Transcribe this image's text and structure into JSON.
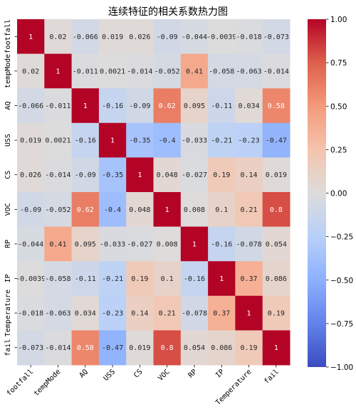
{
  "chart_data": {
    "type": "heatmap",
    "title": "连续特征的相关系数热力图",
    "labels": [
      "footfall",
      "tempMode",
      "AQ",
      "USS",
      "CS",
      "VOC",
      "RP",
      "IP",
      "Temperature",
      "fail"
    ],
    "values": [
      [
        1,
        0.02,
        -0.066,
        0.019,
        0.026,
        -0.09,
        -0.044,
        -0.0039,
        -0.018,
        -0.073
      ],
      [
        0.02,
        1,
        -0.011,
        0.0021,
        -0.014,
        -0.052,
        0.41,
        -0.058,
        -0.063,
        -0.014
      ],
      [
        -0.066,
        -0.011,
        1,
        -0.16,
        -0.09,
        0.62,
        0.095,
        -0.11,
        0.034,
        0.58
      ],
      [
        0.019,
        0.0021,
        -0.16,
        1,
        -0.35,
        -0.4,
        -0.033,
        -0.21,
        -0.23,
        -0.47
      ],
      [
        0.026,
        -0.014,
        -0.09,
        -0.35,
        1,
        0.048,
        -0.027,
        0.19,
        0.14,
        0.019
      ],
      [
        -0.09,
        -0.052,
        0.62,
        -0.4,
        0.048,
        1,
        0.008,
        0.1,
        0.21,
        0.8
      ],
      [
        -0.044,
        0.41,
        0.095,
        -0.033,
        -0.027,
        0.008,
        1,
        -0.16,
        -0.078,
        0.054
      ],
      [
        -0.0039,
        -0.058,
        -0.11,
        -0.21,
        0.19,
        0.1,
        -0.16,
        1,
        0.37,
        0.086
      ],
      [
        -0.018,
        -0.063,
        0.034,
        -0.23,
        0.14,
        0.21,
        -0.078,
        0.37,
        1,
        0.19
      ],
      [
        -0.073,
        -0.014,
        0.58,
        -0.47,
        0.019,
        0.8,
        0.054,
        0.086,
        0.19,
        1
      ]
    ],
    "cell_labels": [
      [
        "1",
        "0.02",
        "-0.066",
        "0.019",
        "0.026",
        "-0.09",
        "-0.044",
        "-0.0039",
        "-0.018",
        "-0.073"
      ],
      [
        "0.02",
        "1",
        "-0.011",
        "0.0021",
        "-0.014",
        "-0.052",
        "0.41",
        "-0.058",
        "-0.063",
        "-0.014"
      ],
      [
        "-0.066",
        "-0.011",
        "1",
        "-0.16",
        "-0.09",
        "0.62",
        "0.095",
        "-0.11",
        "0.034",
        "0.58"
      ],
      [
        "0.019",
        "0.0021",
        "-0.16",
        "1",
        "-0.35",
        "-0.4",
        "-0.033",
        "-0.21",
        "-0.23",
        "-0.47"
      ],
      [
        "0.026",
        "-0.014",
        "-0.09",
        "-0.35",
        "1",
        "0.048",
        "-0.027",
        "0.19",
        "0.14",
        "0.019"
      ],
      [
        "-0.09",
        "-0.052",
        "0.62",
        "-0.4",
        "0.048",
        "1",
        "0.008",
        "0.1",
        "0.21",
        "0.8"
      ],
      [
        "-0.044",
        "0.41",
        "0.095",
        "-0.033",
        "-0.027",
        "0.008",
        "1",
        "-0.16",
        "-0.078",
        "0.054"
      ],
      [
        "-0.0039",
        "-0.058",
        "-0.11",
        "-0.21",
        "0.19",
        "0.1",
        "-0.16",
        "1",
        "0.37",
        "0.086"
      ],
      [
        "-0.018",
        "-0.063",
        "0.034",
        "-0.23",
        "0.14",
        "0.21",
        "-0.078",
        "0.37",
        "1",
        "0.19"
      ],
      [
        "-0.073",
        "-0.014",
        "0.58",
        "-0.47",
        "0.019",
        "0.8",
        "0.054",
        "0.086",
        "0.19",
        "1"
      ]
    ],
    "colorbar": {
      "range": [
        -1,
        1
      ],
      "ticks": [
        1.0,
        0.75,
        0.5,
        0.25,
        0.0,
        -0.25,
        -0.5,
        -0.75,
        -1.0
      ],
      "tick_labels": [
        "1.00",
        "0.75",
        "0.50",
        "0.25",
        "0.00",
        "−0.25",
        "−0.50",
        "−0.75",
        "−1.00"
      ],
      "colormap": "coolwarm"
    }
  },
  "colors": {
    "low": "#3b4cc0",
    "mid": "#dddcdc",
    "high": "#b40426"
  }
}
